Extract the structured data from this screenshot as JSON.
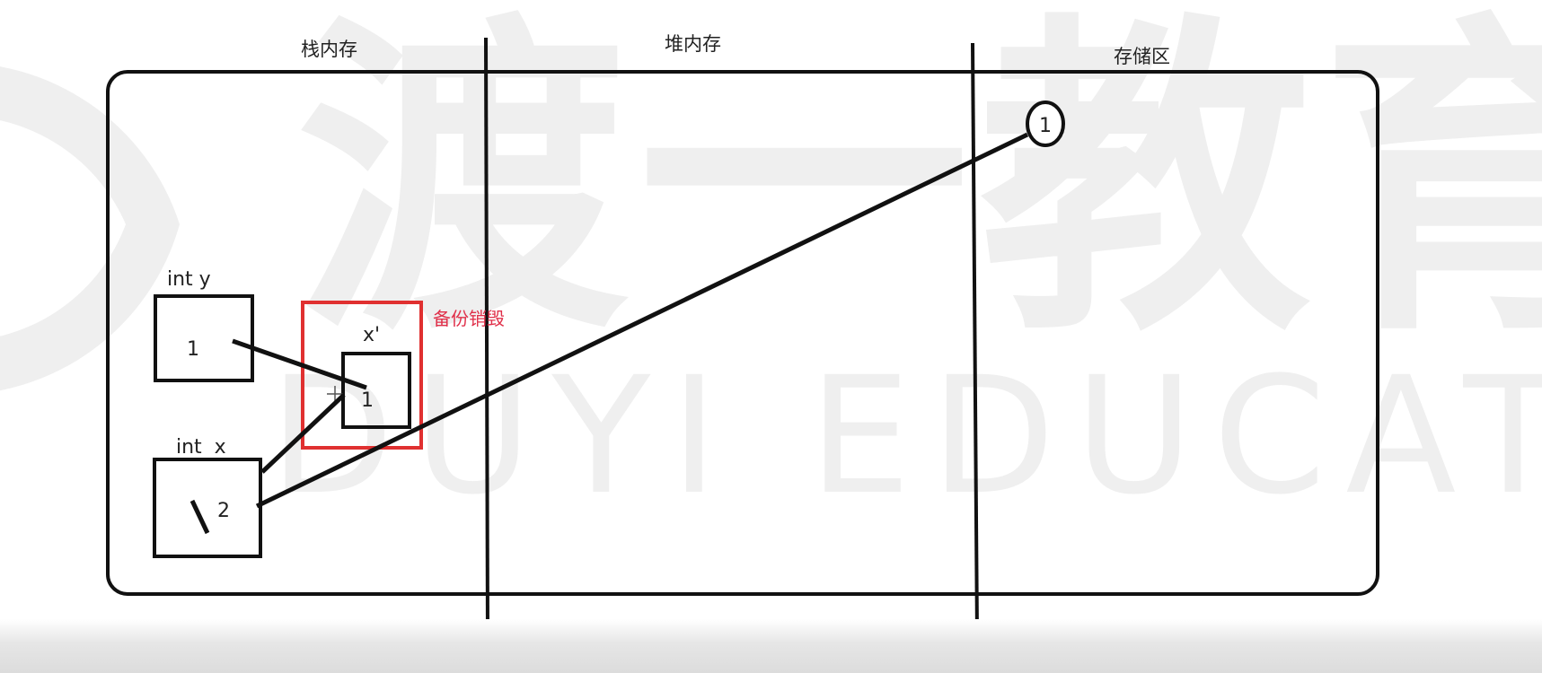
{
  "diagram": {
    "regions": [
      {
        "id": "stack",
        "label": "栈内存"
      },
      {
        "id": "heap",
        "label": "堆内存"
      },
      {
        "id": "storage",
        "label": "存储区"
      }
    ],
    "variables": [
      {
        "id": "y",
        "label": "int y",
        "value": "1"
      },
      {
        "id": "x",
        "label": "int  x",
        "value": "2"
      },
      {
        "id": "x-copy",
        "label": "x'",
        "value": "1"
      }
    ],
    "storage_value": "1",
    "annotation": "备份销毁"
  },
  "watermark": {
    "chinese": "渡一教育",
    "english": "DUYI EDUCATION"
  },
  "colors": {
    "ink": "#111111",
    "highlight": "#e03030",
    "annotation": "#e0304a",
    "watermark": "#efefef"
  }
}
